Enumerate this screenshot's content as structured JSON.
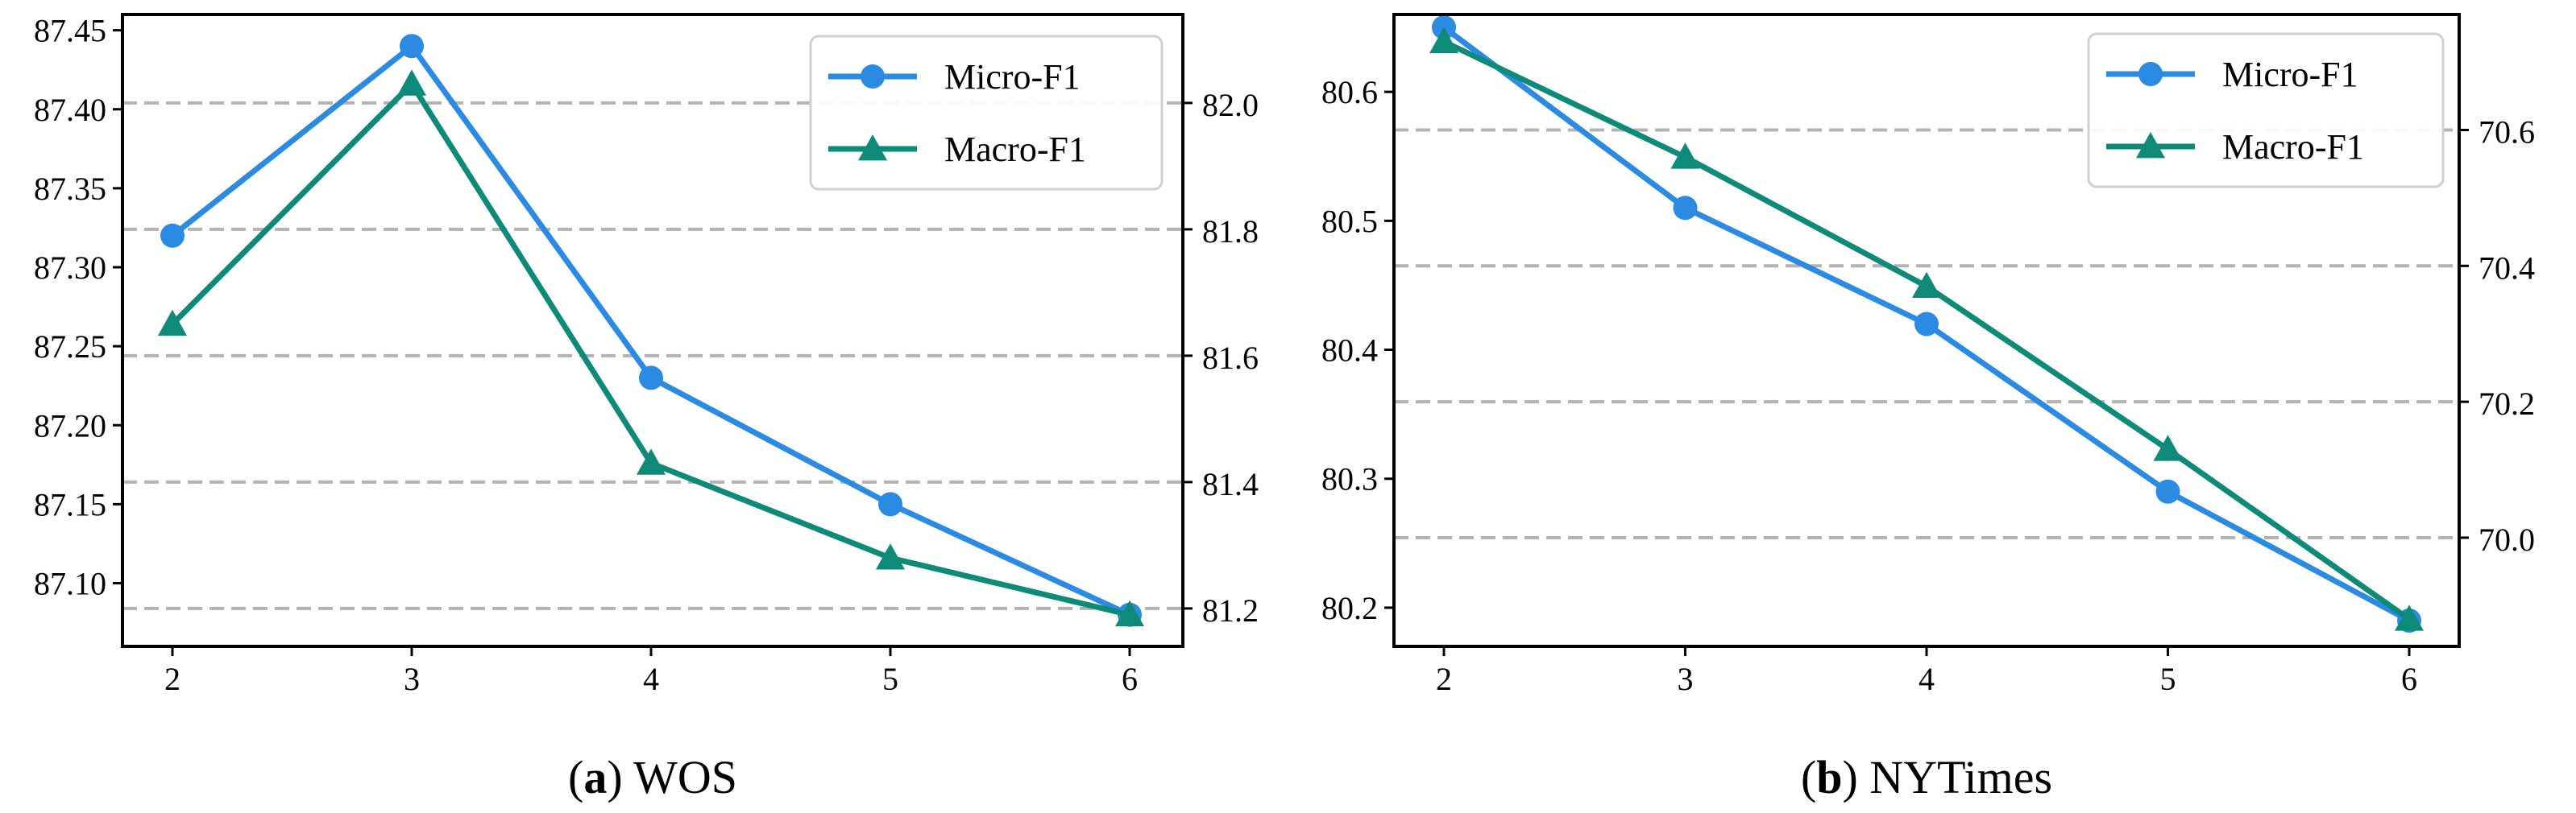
{
  "chart_data": [
    {
      "type": "line",
      "panel_letter": "a",
      "title": "WOS",
      "xlabel": "",
      "ylabel": "",
      "ylabel_right": "",
      "x": [
        2,
        3,
        4,
        5,
        6
      ],
      "x_tick_labels": [
        "2",
        "3",
        "4",
        "5",
        "6"
      ],
      "ylim": [
        87.06,
        87.46
      ],
      "ylim_right": [
        81.14,
        82.14
      ],
      "y_ticks": [
        87.1,
        87.15,
        87.2,
        87.25,
        87.3,
        87.35,
        87.4,
        87.45
      ],
      "y_tick_labels": [
        "87.10",
        "87.15",
        "87.20",
        "87.25",
        "87.30",
        "87.35",
        "87.40",
        "87.45"
      ],
      "y_ticks_right": [
        81.2,
        81.4,
        81.6,
        81.8,
        82.0
      ],
      "y_tick_labels_right": [
        "81.2",
        "81.4",
        "81.6",
        "81.8",
        "82.0"
      ],
      "grid": "dashed horizontal at right-axis ticks",
      "legend_position": "top-right",
      "series": [
        {
          "name": "Micro-F1",
          "axis": "left",
          "marker": "circle",
          "color": "#2b8ae2",
          "values": [
            87.32,
            87.44,
            87.23,
            87.15,
            87.08
          ]
        },
        {
          "name": "Macro-F1",
          "axis": "right",
          "marker": "triangle",
          "color": "#0e8a78",
          "values": [
            81.65,
            82.03,
            81.43,
            81.28,
            81.19
          ]
        }
      ]
    },
    {
      "type": "line",
      "panel_letter": "b",
      "title": "NYTimes",
      "xlabel": "",
      "ylabel": "",
      "ylabel_right": "",
      "x": [
        2,
        3,
        4,
        5,
        6
      ],
      "x_tick_labels": [
        "2",
        "3",
        "4",
        "5",
        "6"
      ],
      "ylim": [
        80.17,
        80.66
      ],
      "ylim_right": [
        69.84,
        70.77
      ],
      "y_ticks": [
        80.2,
        80.3,
        80.4,
        80.5,
        80.6
      ],
      "y_tick_labels": [
        "80.2",
        "80.3",
        "80.4",
        "80.5",
        "80.6"
      ],
      "y_ticks_right": [
        70.0,
        70.2,
        70.4,
        70.6
      ],
      "y_tick_labels_right": [
        "70.0",
        "70.2",
        "70.4",
        "70.6"
      ],
      "grid": "dashed horizontal at right-axis ticks",
      "legend_position": "top-right",
      "series": [
        {
          "name": "Micro-F1",
          "axis": "left",
          "marker": "circle",
          "color": "#2b8ae2",
          "values": [
            80.65,
            80.51,
            80.42,
            80.29,
            80.19
          ]
        },
        {
          "name": "Macro-F1",
          "axis": "right",
          "marker": "triangle",
          "color": "#0e8a78",
          "values": [
            70.73,
            70.56,
            70.37,
            70.13,
            69.88
          ]
        }
      ]
    }
  ]
}
